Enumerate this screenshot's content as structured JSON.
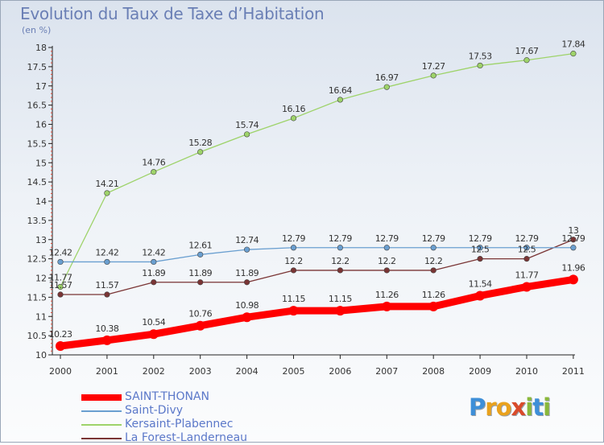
{
  "title": "Evolution du Taux de Taxe d’Habitation",
  "subtitle": "(en %)",
  "logo": {
    "letters": [
      "P",
      "r",
      "o",
      "x",
      "i",
      "t",
      "i"
    ],
    "colors": [
      "#3e8fd8",
      "#e9a21d",
      "#e9a21d",
      "#d94b2b",
      "#8ab83a",
      "#3e8fd8",
      "#8ab83a"
    ]
  },
  "chart_data": {
    "type": "line",
    "title": "Evolution du Taux de Taxe d’Habitation",
    "ylabel": "(en %)",
    "xlabel": "",
    "x": [
      "2000",
      "2001",
      "2002",
      "2003",
      "2004",
      "2005",
      "2006",
      "2007",
      "2008",
      "2009",
      "2010",
      "2011"
    ],
    "ylim": [
      10,
      18
    ],
    "yticks": [
      "10",
      "10.5",
      "11",
      "11.5",
      "12",
      "12.5",
      "13",
      "13.5",
      "14",
      "14.5",
      "15",
      "15.5",
      "16",
      "16.5",
      "17",
      "17.5",
      "18"
    ],
    "grid": false,
    "legend_position": "bottom-left",
    "series": [
      {
        "name": "SAINT-THONAN",
        "color": "#ff0000",
        "values": [
          10.23,
          10.38,
          10.54,
          10.76,
          10.98,
          11.15,
          11.15,
          11.26,
          11.26,
          11.54,
          11.77,
          11.96
        ],
        "labels": [
          "10.23",
          "10.38",
          "10.54",
          "10.76",
          "10.98",
          "11.15",
          "11.15",
          "11.26",
          "11.26",
          "11.54",
          "11.77",
          "11.96"
        ]
      },
      {
        "name": "Saint-Divy",
        "color": "#6a9fd0",
        "values": [
          12.42,
          12.42,
          12.42,
          12.61,
          12.74,
          12.79,
          12.79,
          12.79,
          12.79,
          12.79,
          12.79,
          12.79
        ],
        "labels": [
          "12.42",
          "12.42",
          "12.42",
          "12.61",
          "12.74",
          "12.79",
          "12.79",
          "12.79",
          "12.79",
          "12.79",
          "12.79",
          "12.79"
        ]
      },
      {
        "name": "Kersaint-Plabennec",
        "color": "#9ed36a",
        "values": [
          11.77,
          14.21,
          14.76,
          15.28,
          15.74,
          16.16,
          16.64,
          16.97,
          17.27,
          17.53,
          17.67,
          17.84
        ],
        "labels": [
          "11.77",
          "14.21",
          "14.76",
          "15.28",
          "15.74",
          "16.16",
          "16.64",
          "16.97",
          "17.27",
          "17.53",
          "17.67",
          "17.84"
        ]
      },
      {
        "name": "La Forest-Landerneau",
        "color": "#7a3535",
        "values": [
          11.57,
          11.57,
          11.89,
          11.89,
          11.89,
          12.2,
          12.2,
          12.2,
          12.2,
          12.5,
          12.5,
          13
        ],
        "labels": [
          "11.57",
          "11.57",
          "11.89",
          "11.89",
          "11.89",
          "12.2",
          "12.2",
          "12.2",
          "12.2",
          "12.5",
          "12.5",
          "13"
        ]
      }
    ]
  }
}
